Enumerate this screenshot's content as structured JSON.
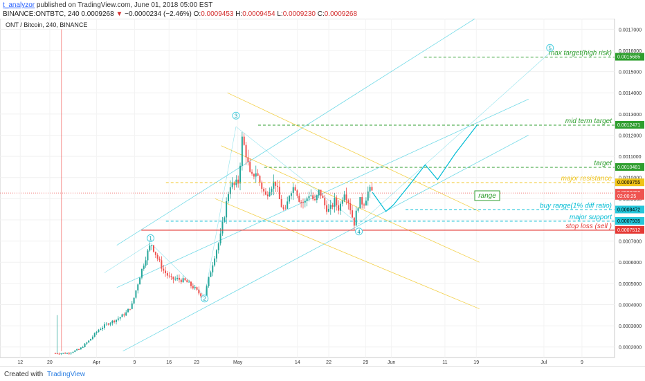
{
  "header": {
    "user": "t_analyzor",
    "published": " published on TradingView.com, June 01, 2018 05:00 EST",
    "symbol": "BINANCE:ONTBTC, 240",
    "last": "0.0009268",
    "arrow": "▼",
    "change": "−0.0000234 (−2.46%)",
    "o_label": "O:",
    "o_val": "0.0009453",
    "h_label": "H:",
    "h_val": "0.0009454",
    "l_label": "L:",
    "l_val": "0.0009230",
    "c_label": "C:",
    "c_val": "0.0009268"
  },
  "footer": {
    "created": "Created with",
    "brand": "TradingView"
  },
  "colors": {
    "up": "#26a69a",
    "down": "#ef5350",
    "channel": "#4dd0e1",
    "yellow": "#f0c419",
    "green": "#2e9e2e",
    "red": "#e53935",
    "cyan": "#00bcd4"
  },
  "chart_data": {
    "type": "candlestick",
    "title": "ONT / Bitcoin, 240, BINANCE",
    "ylim": [
      0.00015,
      0.00175
    ],
    "y_ticks": [
      "0.0002000",
      "0.0003000",
      "0.0004000",
      "0.0005000",
      "0.0006000",
      "0.0007000",
      "0.0008000",
      "0.0009000",
      "0.0010000",
      "0.0011000",
      "0.0012000",
      "0.0013000",
      "0.0014000",
      "0.0015000",
      "0.0016000",
      "0.0017000"
    ],
    "x_ticks": [
      {
        "label": "12",
        "pos": 0.033
      },
      {
        "label": "20",
        "pos": 0.081
      },
      {
        "label": "Apr",
        "pos": 0.157
      },
      {
        "label": "9",
        "pos": 0.219
      },
      {
        "label": "16",
        "pos": 0.275
      },
      {
        "label": "23",
        "pos": 0.32
      },
      {
        "label": "May",
        "pos": 0.387
      },
      {
        "label": "14",
        "pos": 0.484
      },
      {
        "label": "22",
        "pos": 0.535
      },
      {
        "label": "29",
        "pos": 0.595
      },
      {
        "label": "Jun",
        "pos": 0.637
      },
      {
        "label": "11",
        "pos": 0.724
      },
      {
        "label": "19",
        "pos": 0.775
      },
      {
        "label": "Jul",
        "pos": 0.885
      },
      {
        "label": "9",
        "pos": 0.947
      }
    ],
    "price_path": [
      [
        0.0,
        0.00022
      ],
      [
        0.01,
        0.00021
      ],
      [
        0.02,
        0.00019
      ],
      [
        0.03,
        0.00018
      ],
      [
        0.05,
        0.00018
      ],
      [
        0.07,
        0.00017
      ],
      [
        0.09,
        0.00017
      ],
      [
        0.11,
        0.00017
      ],
      [
        0.13,
        0.00019
      ],
      [
        0.145,
        0.00023
      ],
      [
        0.16,
        0.00028
      ],
      [
        0.175,
        0.00031
      ],
      [
        0.19,
        0.00033
      ],
      [
        0.205,
        0.00036
      ],
      [
        0.215,
        0.0004
      ],
      [
        0.228,
        0.00054
      ],
      [
        0.238,
        0.00063
      ],
      [
        0.246,
        0.00069
      ],
      [
        0.256,
        0.00062
      ],
      [
        0.266,
        0.00056
      ],
      [
        0.278,
        0.00052
      ],
      [
        0.29,
        0.00052
      ],
      [
        0.302,
        0.00051
      ],
      [
        0.315,
        0.00048
      ],
      [
        0.325,
        0.00045
      ],
      [
        0.333,
        0.00044
      ],
      [
        0.342,
        0.00055
      ],
      [
        0.35,
        0.00064
      ],
      [
        0.358,
        0.00071
      ],
      [
        0.366,
        0.00084
      ],
      [
        0.374,
        0.00097
      ],
      [
        0.381,
        0.00096
      ],
      [
        0.388,
        0.00098
      ],
      [
        0.394,
        0.00118
      ],
      [
        0.4,
        0.00112
      ],
      [
        0.408,
        0.00099
      ],
      [
        0.416,
        0.00103
      ],
      [
        0.424,
        0.00097
      ],
      [
        0.432,
        0.00091
      ],
      [
        0.44,
        0.00096
      ],
      [
        0.448,
        0.00098
      ],
      [
        0.456,
        0.00088
      ],
      [
        0.464,
        0.00083
      ],
      [
        0.472,
        0.00094
      ],
      [
        0.48,
        0.00096
      ],
      [
        0.488,
        0.00089
      ],
      [
        0.496,
        0.00088
      ],
      [
        0.504,
        0.00093
      ],
      [
        0.512,
        0.00088
      ],
      [
        0.52,
        0.00094
      ],
      [
        0.528,
        0.00087
      ],
      [
        0.536,
        0.00084
      ],
      [
        0.544,
        0.00089
      ],
      [
        0.552,
        0.00085
      ],
      [
        0.56,
        0.00094
      ],
      [
        0.568,
        0.00088
      ],
      [
        0.576,
        0.00078
      ],
      [
        0.584,
        0.00089
      ],
      [
        0.592,
        0.00088
      ],
      [
        0.6,
        0.00094
      ],
      [
        0.606,
        0.00093
      ]
    ],
    "levels": [
      {
        "name": "max target(high risk)",
        "price": 0.0015685,
        "color": "#2e9e2e",
        "start": 0.69
      },
      {
        "name": "mid term target",
        "price": 0.0012471,
        "color": "#2e9e2e",
        "start": 0.42
      },
      {
        "name": "target",
        "price": 0.0010481,
        "color": "#2e9e2e",
        "start": 0.43
      },
      {
        "name": "major resistance",
        "price": 0.0009755,
        "color": "#f0c419",
        "start": 0.27
      },
      {
        "name": "buy range(1% diff ratio)",
        "price": 0.0008472,
        "color": "#00bcd4",
        "start": 0.66
      },
      {
        "name": "major support",
        "price": 0.0007935,
        "color": "#00bcd4",
        "start": 0.27
      },
      {
        "name": "stop loss (sell )",
        "price": 0.0007512,
        "color": "#e53935",
        "start": 0.23
      }
    ],
    "price_labels": [
      {
        "text": "0.0015685",
        "price": 0.0015685,
        "bg": "#2e9e2e",
        "fg": "#ffffff"
      },
      {
        "text": "0.0012471",
        "price": 0.0012471,
        "bg": "#2e9e2e",
        "fg": "#ffffff"
      },
      {
        "text": "0.0010481",
        "price": 0.0010481,
        "bg": "#2e9e2e",
        "fg": "#ffffff"
      },
      {
        "text": "0.0009755",
        "price": 0.0009755,
        "bg": "#f0c419",
        "fg": "#000000"
      },
      {
        "text": "0.0009268",
        "price": 0.0009268,
        "bg": "#ef5350",
        "fg": "#ffffff"
      },
      {
        "text": "02:00:25",
        "price": 0.0009115,
        "bg": "#ef5350",
        "fg": "#ffffff"
      },
      {
        "text": "0.0008472",
        "price": 0.0008472,
        "bg": "#26c6da",
        "fg": "#000000"
      },
      {
        "text": "0.0007935",
        "price": 0.0007935,
        "bg": "#26c6da",
        "fg": "#000000"
      },
      {
        "text": "0.0007512",
        "price": 0.0007512,
        "bg": "#e53935",
        "fg": "#ffffff"
      }
    ],
    "waves": [
      {
        "label": "1",
        "t": 0.245,
        "price": 0.0007135
      },
      {
        "label": "2",
        "t": 0.333,
        "price": 0.0004285
      },
      {
        "label": "3",
        "t": 0.384,
        "price": 0.001292
      },
      {
        "label": "4",
        "t": 0.584,
        "price": 0.000745
      },
      {
        "label": "5",
        "t": 0.895,
        "price": 0.001612
      }
    ],
    "range_label": "range",
    "projection": [
      [
        0.606,
        0.00093
      ],
      [
        0.628,
        0.00084
      ],
      [
        0.64,
        0.00087
      ],
      [
        0.665,
        0.00096
      ],
      [
        0.692,
        0.00106
      ],
      [
        0.712,
        0.00099
      ],
      [
        0.74,
        0.00111
      ],
      [
        0.777,
        0.00125
      ]
    ]
  }
}
